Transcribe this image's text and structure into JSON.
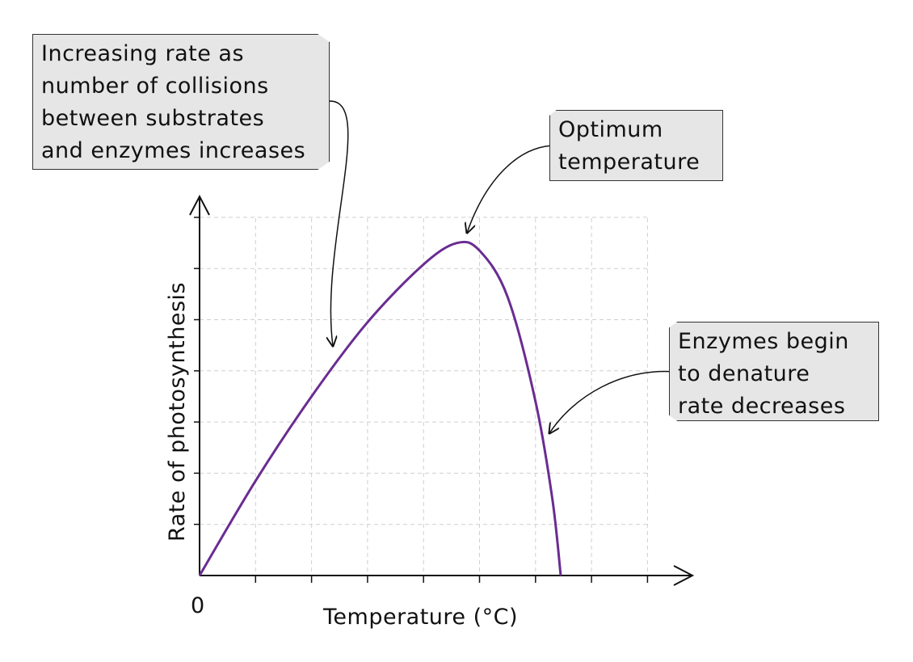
{
  "chart_data": {
    "type": "line",
    "xlabel": "Temperature (°C)",
    "ylabel": "Rate of photosynthesis",
    "origin_label": "0",
    "grid": true,
    "line_color": "#6a2c91",
    "curve": {
      "x": [
        0,
        1,
        2,
        3,
        4,
        4.6,
        5,
        5.5,
        6,
        6.3,
        6.45
      ],
      "y": [
        0,
        1.85,
        3.5,
        4.95,
        6.08,
        6.5,
        6.35,
        5.45,
        3.4,
        1.5,
        0
      ]
    }
  },
  "callouts": {
    "left": {
      "lines": [
        "Increasing rate as",
        "number of collisions",
        "between substrates",
        "and enzymes increases"
      ]
    },
    "top": {
      "lines": [
        "Optimum",
        "temperature"
      ]
    },
    "right": {
      "lines": [
        "Enzymes begin",
        "to denature",
        "rate decreases"
      ]
    }
  }
}
